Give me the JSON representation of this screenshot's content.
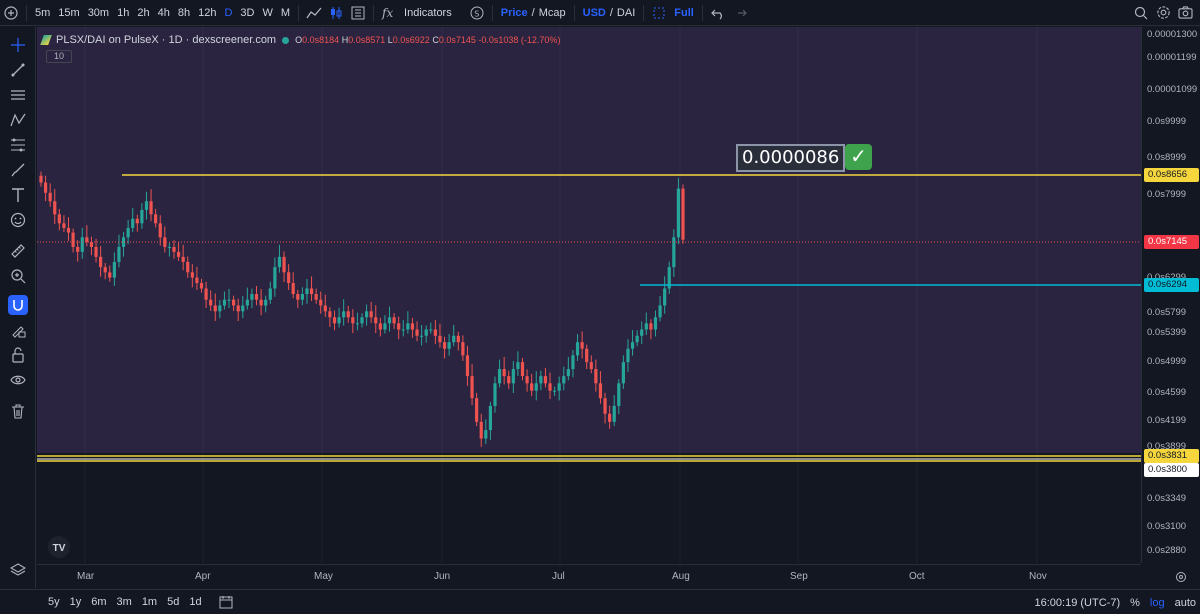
{
  "toolbar": {
    "intervals": [
      "5m",
      "15m",
      "30m",
      "1h",
      "2h",
      "4h",
      "8h",
      "12h",
      "D",
      "3D",
      "W",
      "M"
    ],
    "active_interval": "D",
    "indicators_label": "Indicators",
    "price_label": "Price",
    "mcap_label": "Mcap",
    "usd_label": "USD",
    "dai_label": "DAI",
    "full_label": "Full",
    "slash": "/"
  },
  "legend": {
    "symbol": "PLSX/DAI on PulseX · 1D · dexscreener.com",
    "o_label": "O",
    "o_value": "0.0s8184",
    "h_label": "H",
    "h_value": "0.0s8571",
    "l_label": "L",
    "l_value": "0.0s6922",
    "c_label": "C",
    "c_value": "0.0s7145",
    "change": "-0.0s1038 (-12.70%)",
    "volume_badge": "10"
  },
  "annotation": {
    "text": "0.0000086",
    "check": "✓"
  },
  "price_axis": {
    "ticks": [
      "0.00001300",
      "0.00001199",
      "0.00001099",
      "0.0s9999",
      "0.0s8999",
      "0.0s7999",
      "0.0s6999",
      "0.0s6299",
      "0.0s5799",
      "0.0s5399",
      "0.0s4999",
      "0.0s4599",
      "0.0s4199",
      "0.0s3899",
      "0.0s3599",
      "0.0s3349",
      "0.0s3100",
      "0.0s2880"
    ],
    "labels": [
      {
        "text": "0.0s8656",
        "color": "#f5d63d",
        "text_color": "#131722"
      },
      {
        "text": "0.0s7145",
        "color": "#f23645",
        "text_color": "#ffffff"
      },
      {
        "text": "0.0s6294",
        "color": "#00bcd4",
        "text_color": "#131722"
      },
      {
        "text": "0.0s3831",
        "color": "#f5d63d",
        "text_color": "#131722"
      },
      {
        "text": "0.0s3800",
        "color": "#ffffff",
        "text_color": "#131722"
      }
    ]
  },
  "time_axis": [
    "Mar",
    "Apr",
    "May",
    "Jun",
    "Jul",
    "Aug",
    "Sep",
    "Oct",
    "Nov"
  ],
  "bottom": {
    "ranges": [
      "5y",
      "1y",
      "6m",
      "3m",
      "1m",
      "5d",
      "1d"
    ],
    "time": "16:00:19 (UTC-7)",
    "percent": "%",
    "log": "log",
    "auto": "auto"
  },
  "colors": {
    "background": "#2a2440",
    "up": "#26a69a",
    "down": "#ef5350",
    "resistance_line": "#f5d63d",
    "support_line": "#00bcd4",
    "accent": "#2962ff"
  },
  "chart_data": {
    "type": "candlestick",
    "symbol": "PLSX/DAI",
    "interval": "1D",
    "x_range": [
      "Feb 18",
      "Jul 30"
    ],
    "horizontal_lines": [
      8.656e-05,
      6.294e-05,
      3.831e-05,
      3.8e-05
    ],
    "last_close": 7.145e-05,
    "closes_approx": [
      8.45e-05,
      8.2e-05,
      8e-05,
      7.7e-05,
      7.5e-05,
      7.4e-05,
      7.3e-05,
      7e-05,
      6.9e-05,
      7.2e-05,
      7.1e-05,
      7e-05,
      6.8e-05,
      6.6e-05,
      6.5e-05,
      6.4e-05,
      6.7e-05,
      7e-05,
      7.2e-05,
      7.4e-05,
      7.6e-05,
      7.5e-05,
      7.8e-05,
      8e-05,
      7.7e-05,
      7.5e-05,
      7.2e-05,
      7e-05,
      7e-05,
      6.9e-05,
      6.8e-05,
      6.7e-05,
      6.5e-05,
      6.4e-05,
      6.3e-05,
      6.2e-05,
      6e-05,
      5.9e-05,
      5.8e-05,
      5.9e-05,
      6e-05,
      6e-05,
      5.9e-05,
      5.8e-05,
      5.9e-05,
      6e-05,
      6.1e-05,
      6e-05,
      5.9e-05,
      6e-05,
      6.2e-05,
      6.6e-05,
      6.8e-05,
      6.5e-05,
      6.3e-05,
      6.1e-05,
      6e-05,
      6.1e-05,
      6.2e-05,
      6.1e-05,
      6e-05,
      5.9e-05,
      5.8e-05,
      5.7e-05,
      5.6e-05,
      5.7e-05,
      5.8e-05,
      5.7e-05,
      5.6e-05,
      5.6e-05,
      5.7e-05,
      5.8e-05,
      5.7e-05,
      5.6e-05,
      5.5e-05,
      5.6e-05,
      5.7e-05,
      5.6e-05,
      5.5e-05,
      5.5e-05,
      5.6e-05,
      5.5e-05,
      5.4e-05,
      5.4e-05,
      5.5e-05,
      5.5e-05,
      5.4e-05,
      5.3e-05,
      5.2e-05,
      5.3e-05,
      5.4e-05,
      5.3e-05,
      5.1e-05,
      4.8e-05,
      4.5e-05,
      4.2e-05,
      4e-05,
      4.1e-05,
      4.4e-05,
      4.7e-05,
      4.9e-05,
      4.8e-05,
      4.7e-05,
      4.9e-05,
      5e-05,
      4.8e-05,
      4.7e-05,
      4.6e-05,
      4.7e-05,
      4.8e-05,
      4.7e-05,
      4.6e-05,
      4.6e-05,
      4.7e-05,
      4.8e-05,
      4.9e-05,
      5.1e-05,
      5.3e-05,
      5.2e-05,
      5e-05,
      4.9e-05,
      4.7e-05,
      4.5e-05,
      4.3e-05,
      4.2e-05,
      4.4e-05,
      4.7e-05,
      5e-05,
      5.2e-05,
      5.3e-05,
      5.4e-05,
      5.5e-05,
      5.6e-05,
      5.5e-05,
      5.7e-05,
      5.9e-05,
      6.2e-05,
      6.6e-05,
      7.2e-05,
      8.3e-05,
      7.15e-05
    ]
  }
}
